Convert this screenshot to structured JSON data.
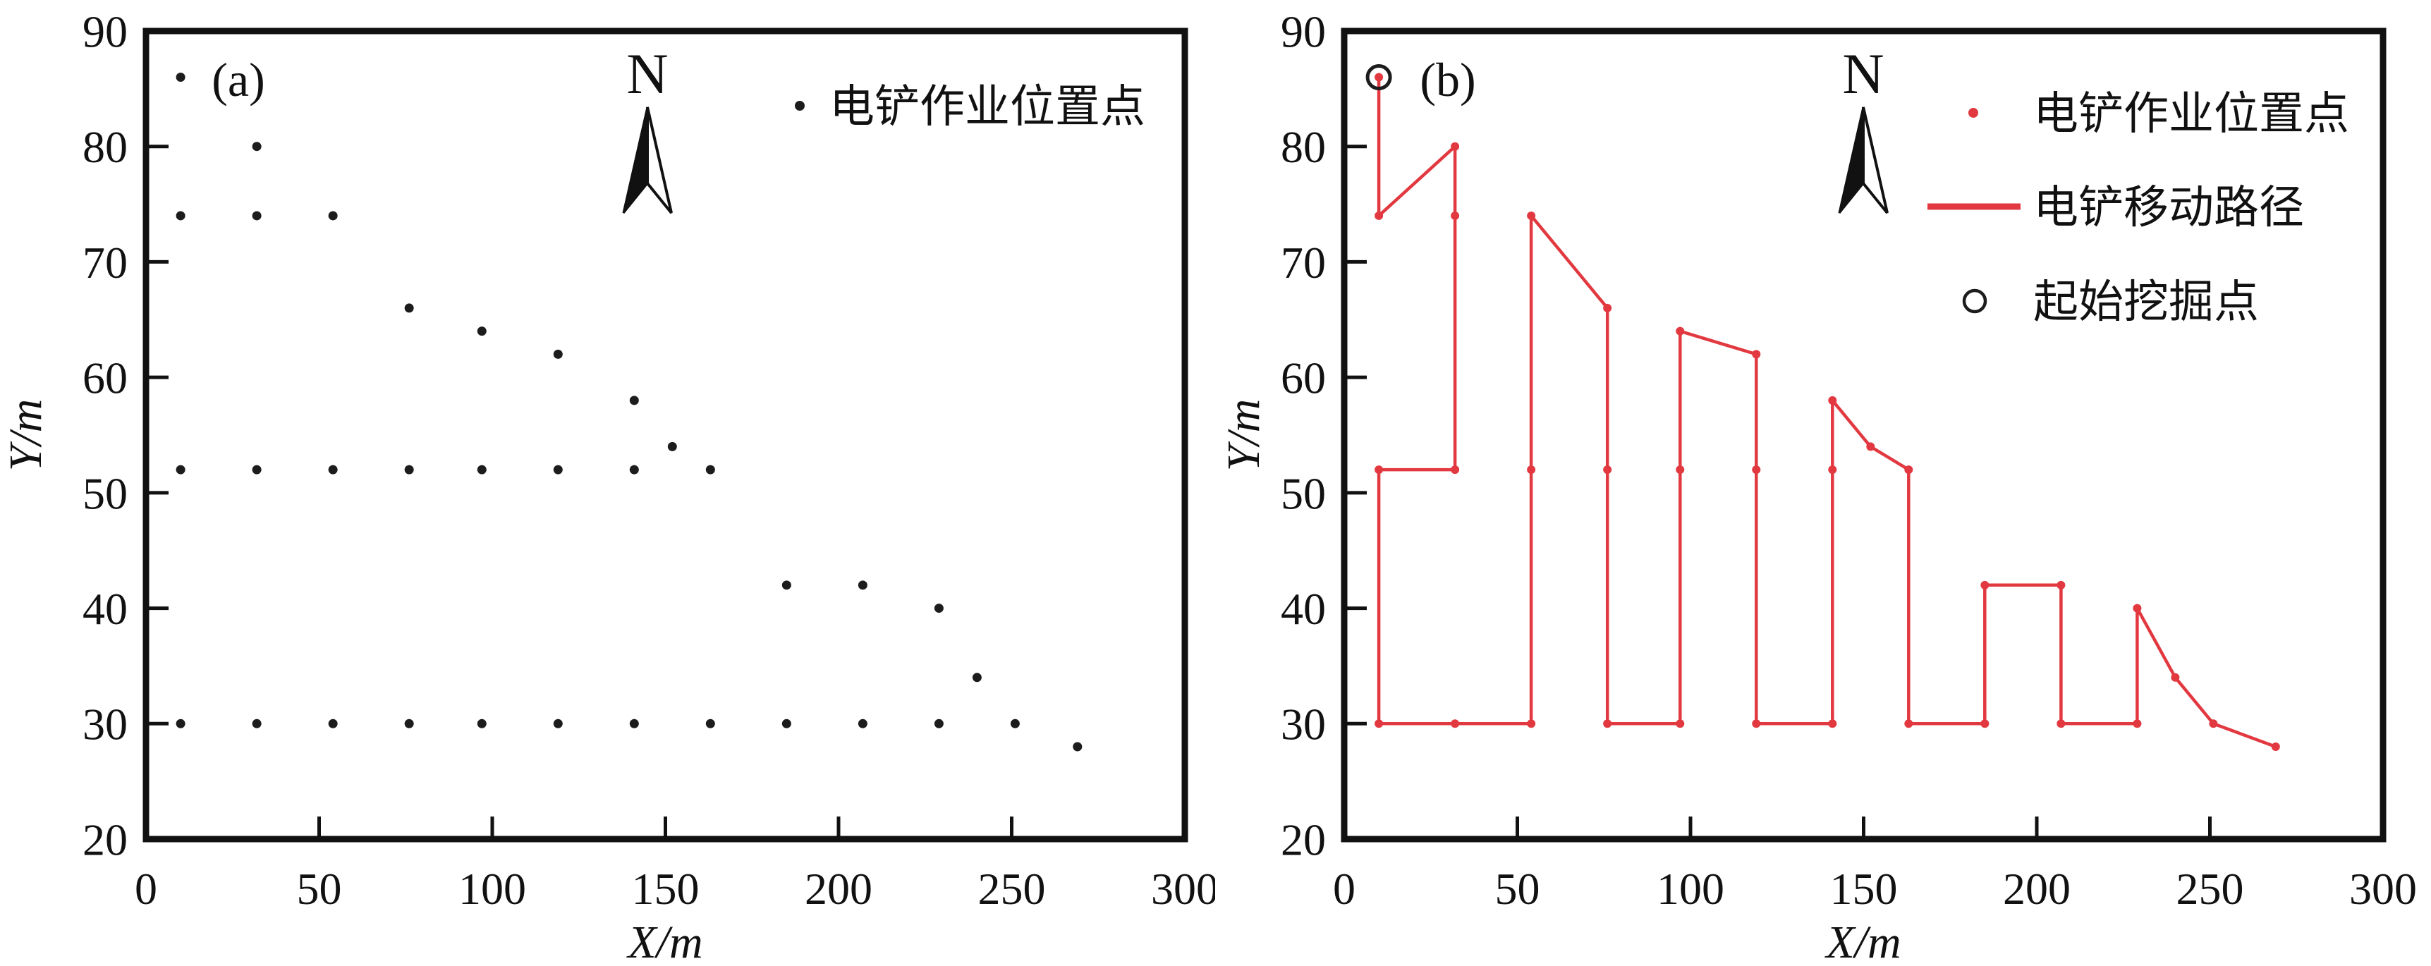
{
  "figure": {
    "background": "#ffffff",
    "axis_color": "#111111"
  },
  "colors": {
    "point_black": "#1c1c1c",
    "path_red": "#e23940",
    "start_circle_black": "#1c1c1c"
  },
  "chart_data": [
    {
      "type": "scatter",
      "panel_label": "(a)",
      "north_label": "N",
      "xlabel": "X/m",
      "ylabel": "Y/m",
      "xlim": [
        0,
        300
      ],
      "ylim": [
        20,
        90
      ],
      "xticks": [
        0,
        50,
        100,
        150,
        200,
        250,
        300
      ],
      "yticks": [
        20,
        30,
        40,
        50,
        60,
        70,
        80,
        90
      ],
      "grid": false,
      "legend_position": "top-right",
      "legend": [
        {
          "marker": "dot",
          "color": "#1c1c1c",
          "label": "电铲作业位置点"
        }
      ],
      "points": [
        [
          10,
          86
        ],
        [
          10,
          74
        ],
        [
          10,
          52
        ],
        [
          10,
          30
        ],
        [
          32,
          80
        ],
        [
          32,
          74
        ],
        [
          32,
          52
        ],
        [
          32,
          30
        ],
        [
          54,
          74
        ],
        [
          54,
          52
        ],
        [
          54,
          30
        ],
        [
          76,
          66
        ],
        [
          76,
          52
        ],
        [
          76,
          30
        ],
        [
          97,
          64
        ],
        [
          97,
          52
        ],
        [
          97,
          30
        ],
        [
          119,
          62
        ],
        [
          119,
          52
        ],
        [
          119,
          30
        ],
        [
          141,
          58
        ],
        [
          141,
          52
        ],
        [
          141,
          30
        ],
        [
          152,
          54
        ],
        [
          163,
          52
        ],
        [
          163,
          30
        ],
        [
          185,
          42
        ],
        [
          185,
          30
        ],
        [
          207,
          42
        ],
        [
          207,
          30
        ],
        [
          229,
          40
        ],
        [
          229,
          30
        ],
        [
          240,
          34
        ],
        [
          251,
          30
        ],
        [
          269,
          28
        ]
      ]
    },
    {
      "type": "line",
      "panel_label": "(b)",
      "north_label": "N",
      "xlabel": "X/m",
      "ylabel": "Y/m",
      "xlim": [
        0,
        300
      ],
      "ylim": [
        20,
        90
      ],
      "xticks": [
        0,
        50,
        100,
        150,
        200,
        250,
        300
      ],
      "yticks": [
        20,
        30,
        40,
        50,
        60,
        70,
        80,
        90
      ],
      "grid": false,
      "legend_position": "top-right",
      "legend": [
        {
          "marker": "dot",
          "color": "#e23940",
          "label": "电铲作业位置点"
        },
        {
          "marker": "line",
          "color": "#e23940",
          "label": "电铲移动路径"
        },
        {
          "marker": "open-circle",
          "color": "#1c1c1c",
          "label": "起始挖掘点"
        }
      ],
      "start_point": [
        10,
        86
      ],
      "path": [
        [
          10,
          86
        ],
        [
          10,
          74
        ],
        [
          32,
          80
        ],
        [
          32,
          74
        ],
        [
          32,
          52
        ],
        [
          10,
          52
        ],
        [
          10,
          30
        ],
        [
          32,
          30
        ],
        [
          54,
          30
        ],
        [
          54,
          52
        ],
        [
          54,
          74
        ],
        [
          76,
          66
        ],
        [
          76,
          52
        ],
        [
          76,
          30
        ],
        [
          97,
          30
        ],
        [
          97,
          52
        ],
        [
          97,
          64
        ],
        [
          119,
          62
        ],
        [
          119,
          52
        ],
        [
          119,
          30
        ],
        [
          141,
          30
        ],
        [
          141,
          52
        ],
        [
          141,
          58
        ],
        [
          152,
          54
        ],
        [
          163,
          52
        ],
        [
          163,
          30
        ],
        [
          185,
          30
        ],
        [
          185,
          42
        ],
        [
          207,
          42
        ],
        [
          207,
          30
        ],
        [
          229,
          30
        ],
        [
          229,
          40
        ],
        [
          240,
          34
        ],
        [
          251,
          30
        ],
        [
          269,
          28
        ]
      ]
    }
  ]
}
